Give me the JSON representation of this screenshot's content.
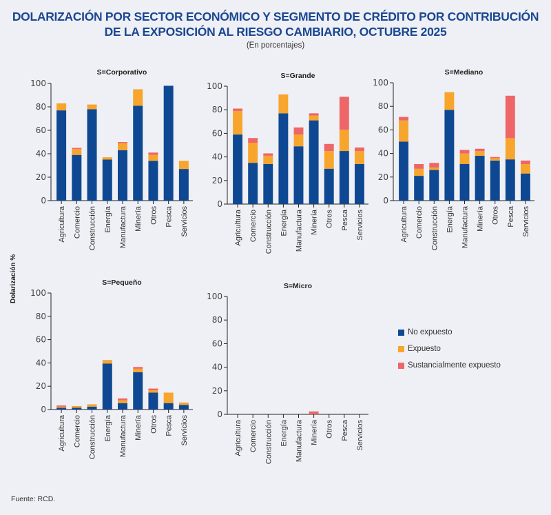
{
  "header": {
    "title_line1": "DOLARIZACIÓN POR SECTOR ECONÓMICO Y SEGMENTO DE CRÉDITO POR CONTRIBUCIÓN",
    "title_line2": "DE LA EXPOSICIÓN AL RIESGO CAMBIARIO, OCTUBRE 2025",
    "subtitle": "(En porcentajes)"
  },
  "y_axis_label": "Dolarización %",
  "source": "Fuente: RCD.",
  "legend": [
    {
      "label": "No expuesto",
      "color": "#0f4892"
    },
    {
      "label": "Expuesto",
      "color": "#f7a52c"
    },
    {
      "label": "Sustancialmente expuesto",
      "color": "#ee6668"
    }
  ],
  "chart_data": [
    {
      "type": "bar",
      "stacked": true,
      "title": "S=Corporativo",
      "categories": [
        "Agricultura",
        "Comercio",
        "Construcción",
        "Energía",
        "Manufactura",
        "Minería",
        "Otros",
        "Pesca",
        "Servicios"
      ],
      "ylim": [
        0,
        100
      ],
      "yticks": [
        0,
        20,
        40,
        60,
        80,
        100
      ],
      "series": [
        {
          "name": "No expuesto",
          "values": [
            77,
            39,
            78,
            35,
            43,
            81,
            34,
            98,
            27
          ]
        },
        {
          "name": "Expuesto",
          "values": [
            6,
            5,
            4,
            2,
            6,
            14,
            5,
            0,
            7
          ]
        },
        {
          "name": "Sustancialmente expuesto",
          "values": [
            0,
            1,
            0,
            0,
            1,
            0,
            2,
            0,
            0
          ]
        }
      ]
    },
    {
      "type": "bar",
      "stacked": true,
      "title": "S=Grande",
      "categories": [
        "Agricultura",
        "Comercio",
        "Construcción",
        "Energía",
        "Manufactura",
        "Minería",
        "Otros",
        "Pesca",
        "Servicios"
      ],
      "ylim": [
        0,
        100
      ],
      "yticks": [
        0,
        20,
        40,
        60,
        80,
        100
      ],
      "series": [
        {
          "name": "No expuesto",
          "values": [
            59,
            35,
            34,
            77,
            49,
            71,
            30,
            45,
            34
          ]
        },
        {
          "name": "Expuesto",
          "values": [
            20,
            17,
            7,
            16,
            10,
            4,
            15,
            18,
            11
          ]
        },
        {
          "name": "Sustancialmente expuesto",
          "values": [
            2,
            4,
            2,
            0,
            6,
            2,
            6,
            28,
            3
          ]
        }
      ]
    },
    {
      "type": "bar",
      "stacked": true,
      "title": "S=Mediano",
      "categories": [
        "Agricultura",
        "Comercio",
        "Construcción",
        "Energía",
        "Manufactura",
        "Minería",
        "Otros",
        "Pesca",
        "Servicios"
      ],
      "ylim": [
        0,
        100
      ],
      "yticks": [
        0,
        20,
        40,
        60,
        80,
        100
      ],
      "series": [
        {
          "name": "No expuesto",
          "values": [
            50,
            21,
            26,
            77,
            31,
            38,
            34,
            35,
            23
          ]
        },
        {
          "name": "Expuesto",
          "values": [
            18,
            6,
            2,
            15,
            9,
            4,
            2,
            18,
            8
          ]
        },
        {
          "name": "Sustancialmente expuesto",
          "values": [
            3,
            4,
            4,
            0,
            3,
            2,
            1,
            36,
            3
          ]
        }
      ]
    },
    {
      "type": "bar",
      "stacked": true,
      "title": "S=Pequeño",
      "categories": [
        "Agricultura",
        "Comercio",
        "Construcción",
        "Energía",
        "Manufactura",
        "Minería",
        "Otros",
        "Pesca",
        "Servicios"
      ],
      "ylim": [
        0,
        100
      ],
      "yticks": [
        0,
        20,
        40,
        60,
        80,
        100
      ],
      "series": [
        {
          "name": "No expuesto",
          "values": [
            1.5,
            1.5,
            2.5,
            39.5,
            5.5,
            32,
            14.5,
            5.5,
            4
          ]
        },
        {
          "name": "Expuesto",
          "values": [
            1,
            1.5,
            2,
            3,
            2.5,
            3,
            2,
            9,
            2
          ]
        },
        {
          "name": "Sustancialmente expuesto",
          "values": [
            1,
            0,
            0,
            0,
            1.5,
            1.5,
            1.5,
            0,
            0
          ]
        }
      ]
    },
    {
      "type": "bar",
      "stacked": true,
      "title": "S=Micro",
      "categories": [
        "Agricultura",
        "Comercio",
        "Construcción",
        "Energía",
        "Manufactura",
        "Minería",
        "Otros",
        "Pesca",
        "Servicios"
      ],
      "ylim": [
        0,
        100
      ],
      "yticks": [
        0,
        20,
        40,
        60,
        80,
        100
      ],
      "series": [
        {
          "name": "No expuesto",
          "values": [
            0,
            0,
            0,
            0,
            0,
            0,
            0,
            0,
            0
          ]
        },
        {
          "name": "Expuesto",
          "values": [
            0,
            0,
            0,
            0,
            0,
            0,
            0,
            0,
            0
          ]
        },
        {
          "name": "Sustancialmente expuesto",
          "values": [
            0,
            0,
            0,
            0,
            0,
            2.5,
            0,
            0,
            0
          ]
        }
      ]
    }
  ]
}
